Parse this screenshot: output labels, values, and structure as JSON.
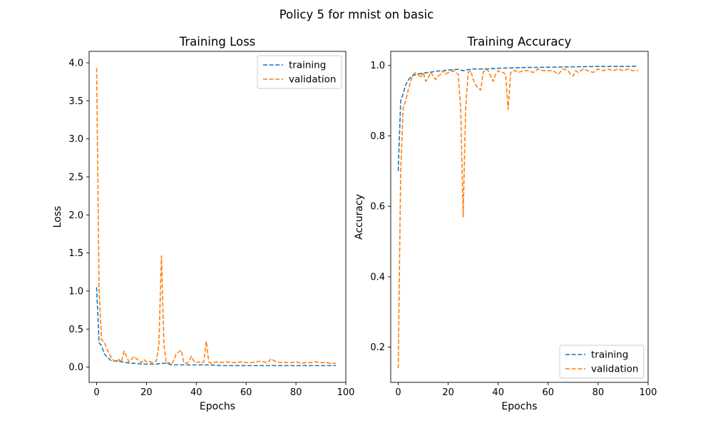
{
  "figure": {
    "suptitle": "Policy 5 for mnist on basic"
  },
  "chart_data": [
    {
      "type": "line",
      "title": "Training Loss",
      "xlabel": "Epochs",
      "ylabel": "Loss",
      "xlim": [
        -3,
        100
      ],
      "ylim": [
        -0.2,
        4.15
      ],
      "xticks": [
        0,
        20,
        40,
        60,
        80,
        100
      ],
      "yticks": [
        0.0,
        0.5,
        1.0,
        1.5,
        2.0,
        2.5,
        3.0,
        3.5,
        4.0
      ],
      "ytick_labels": [
        "0.0",
        "0.5",
        "1.0",
        "1.5",
        "2.0",
        "2.5",
        "3.0",
        "3.5",
        "4.0"
      ],
      "grid": false,
      "legend": "upper right",
      "series": [
        {
          "name": "training",
          "color": "#1f77b4",
          "style": "dashed",
          "x": [
            0,
            1,
            2,
            3,
            4,
            5,
            6,
            8,
            10,
            12,
            14,
            16,
            18,
            20,
            22,
            24,
            26,
            28,
            30,
            35,
            40,
            45,
            50,
            55,
            60,
            65,
            70,
            75,
            80,
            85,
            90,
            96
          ],
          "y": [
            1.05,
            0.32,
            0.28,
            0.18,
            0.14,
            0.11,
            0.08,
            0.08,
            0.07,
            0.06,
            0.05,
            0.05,
            0.04,
            0.04,
            0.04,
            0.04,
            0.05,
            0.05,
            0.03,
            0.03,
            0.03,
            0.03,
            0.02,
            0.02,
            0.02,
            0.02,
            0.02,
            0.02,
            0.02,
            0.02,
            0.02,
            0.02
          ]
        },
        {
          "name": "validation",
          "color": "#ff7f0e",
          "style": "dashed",
          "x": [
            0,
            1,
            2,
            3,
            4,
            5,
            6,
            7,
            8,
            9,
            10,
            11,
            12,
            13,
            14,
            15,
            16,
            17,
            18,
            19,
            20,
            21,
            22,
            23,
            24,
            25,
            26,
            27,
            28,
            29,
            30,
            31,
            32,
            33,
            34,
            35,
            36,
            37,
            38,
            39,
            40,
            41,
            42,
            43,
            44,
            45,
            46,
            47,
            48,
            50,
            52,
            54,
            56,
            58,
            60,
            62,
            64,
            66,
            68,
            69,
            70,
            71,
            72,
            74,
            76,
            78,
            80,
            82,
            84,
            86,
            88,
            90,
            92,
            94,
            96
          ],
          "y": [
            3.93,
            1.0,
            0.36,
            0.33,
            0.25,
            0.18,
            0.12,
            0.08,
            0.07,
            0.1,
            0.07,
            0.21,
            0.14,
            0.07,
            0.1,
            0.14,
            0.11,
            0.09,
            0.06,
            0.1,
            0.07,
            0.08,
            0.06,
            0.07,
            0.08,
            0.3,
            1.46,
            0.3,
            0.05,
            0.06,
            0.04,
            0.09,
            0.18,
            0.2,
            0.22,
            0.06,
            0.05,
            0.07,
            0.14,
            0.08,
            0.06,
            0.07,
            0.05,
            0.07,
            0.34,
            0.07,
            0.05,
            0.06,
            0.07,
            0.06,
            0.07,
            0.06,
            0.06,
            0.07,
            0.06,
            0.06,
            0.07,
            0.08,
            0.06,
            0.07,
            0.11,
            0.09,
            0.07,
            0.06,
            0.06,
            0.06,
            0.07,
            0.05,
            0.06,
            0.06,
            0.07,
            0.06,
            0.06,
            0.05,
            0.05
          ]
        }
      ]
    },
    {
      "type": "line",
      "title": "Training Accuracy",
      "xlabel": "Epochs",
      "ylabel": "Accuracy",
      "xlim": [
        -3,
        100
      ],
      "ylim": [
        0.1,
        1.04
      ],
      "xticks": [
        0,
        20,
        40,
        60,
        80,
        100
      ],
      "yticks": [
        0.2,
        0.4,
        0.6,
        0.8,
        1.0
      ],
      "ytick_labels": [
        "0.2",
        "0.4",
        "0.6",
        "0.8",
        "1.0"
      ],
      "grid": false,
      "legend": "lower right",
      "series": [
        {
          "name": "training",
          "color": "#1f77b4",
          "style": "dashed",
          "x": [
            0,
            1,
            2,
            3,
            4,
            5,
            6,
            8,
            10,
            12,
            14,
            16,
            18,
            20,
            22,
            24,
            26,
            28,
            30,
            35,
            40,
            45,
            50,
            60,
            70,
            80,
            90,
            96
          ],
          "y": [
            0.7,
            0.9,
            0.92,
            0.945,
            0.958,
            0.967,
            0.972,
            0.976,
            0.978,
            0.98,
            0.982,
            0.984,
            0.985,
            0.987,
            0.988,
            0.989,
            0.985,
            0.988,
            0.99,
            0.99,
            0.992,
            0.993,
            0.994,
            0.995,
            0.996,
            0.997,
            0.997,
            0.998
          ]
        },
        {
          "name": "validation",
          "color": "#ff7f0e",
          "style": "dashed",
          "x": [
            0,
            1,
            2,
            3,
            4,
            5,
            6,
            7,
            8,
            9,
            10,
            11,
            12,
            13,
            14,
            15,
            16,
            17,
            18,
            19,
            20,
            21,
            22,
            23,
            24,
            25,
            26,
            27,
            28,
            29,
            30,
            31,
            32,
            33,
            34,
            35,
            36,
            37,
            38,
            39,
            40,
            41,
            42,
            43,
            44,
            45,
            46,
            47,
            48,
            50,
            52,
            54,
            56,
            58,
            60,
            62,
            64,
            66,
            68,
            69,
            70,
            71,
            72,
            74,
            76,
            78,
            80,
            82,
            84,
            86,
            88,
            90,
            92,
            94,
            96
          ],
          "y": [
            0.14,
            0.7,
            0.88,
            0.9,
            0.93,
            0.955,
            0.975,
            0.98,
            0.975,
            0.965,
            0.98,
            0.955,
            0.965,
            0.98,
            0.97,
            0.96,
            0.97,
            0.975,
            0.985,
            0.975,
            0.98,
            0.982,
            0.985,
            0.98,
            0.975,
            0.88,
            0.57,
            0.88,
            0.98,
            0.985,
            0.96,
            0.945,
            0.935,
            0.93,
            0.98,
            0.99,
            0.985,
            0.97,
            0.955,
            0.975,
            0.985,
            0.98,
            0.98,
            0.975,
            0.875,
            0.98,
            0.985,
            0.985,
            0.98,
            0.985,
            0.985,
            0.98,
            0.99,
            0.985,
            0.985,
            0.985,
            0.975,
            0.99,
            0.985,
            0.975,
            0.97,
            0.985,
            0.98,
            0.99,
            0.985,
            0.98,
            0.99,
            0.985,
            0.99,
            0.985,
            0.99,
            0.985,
            0.99,
            0.985,
            0.985
          ]
        }
      ]
    }
  ]
}
